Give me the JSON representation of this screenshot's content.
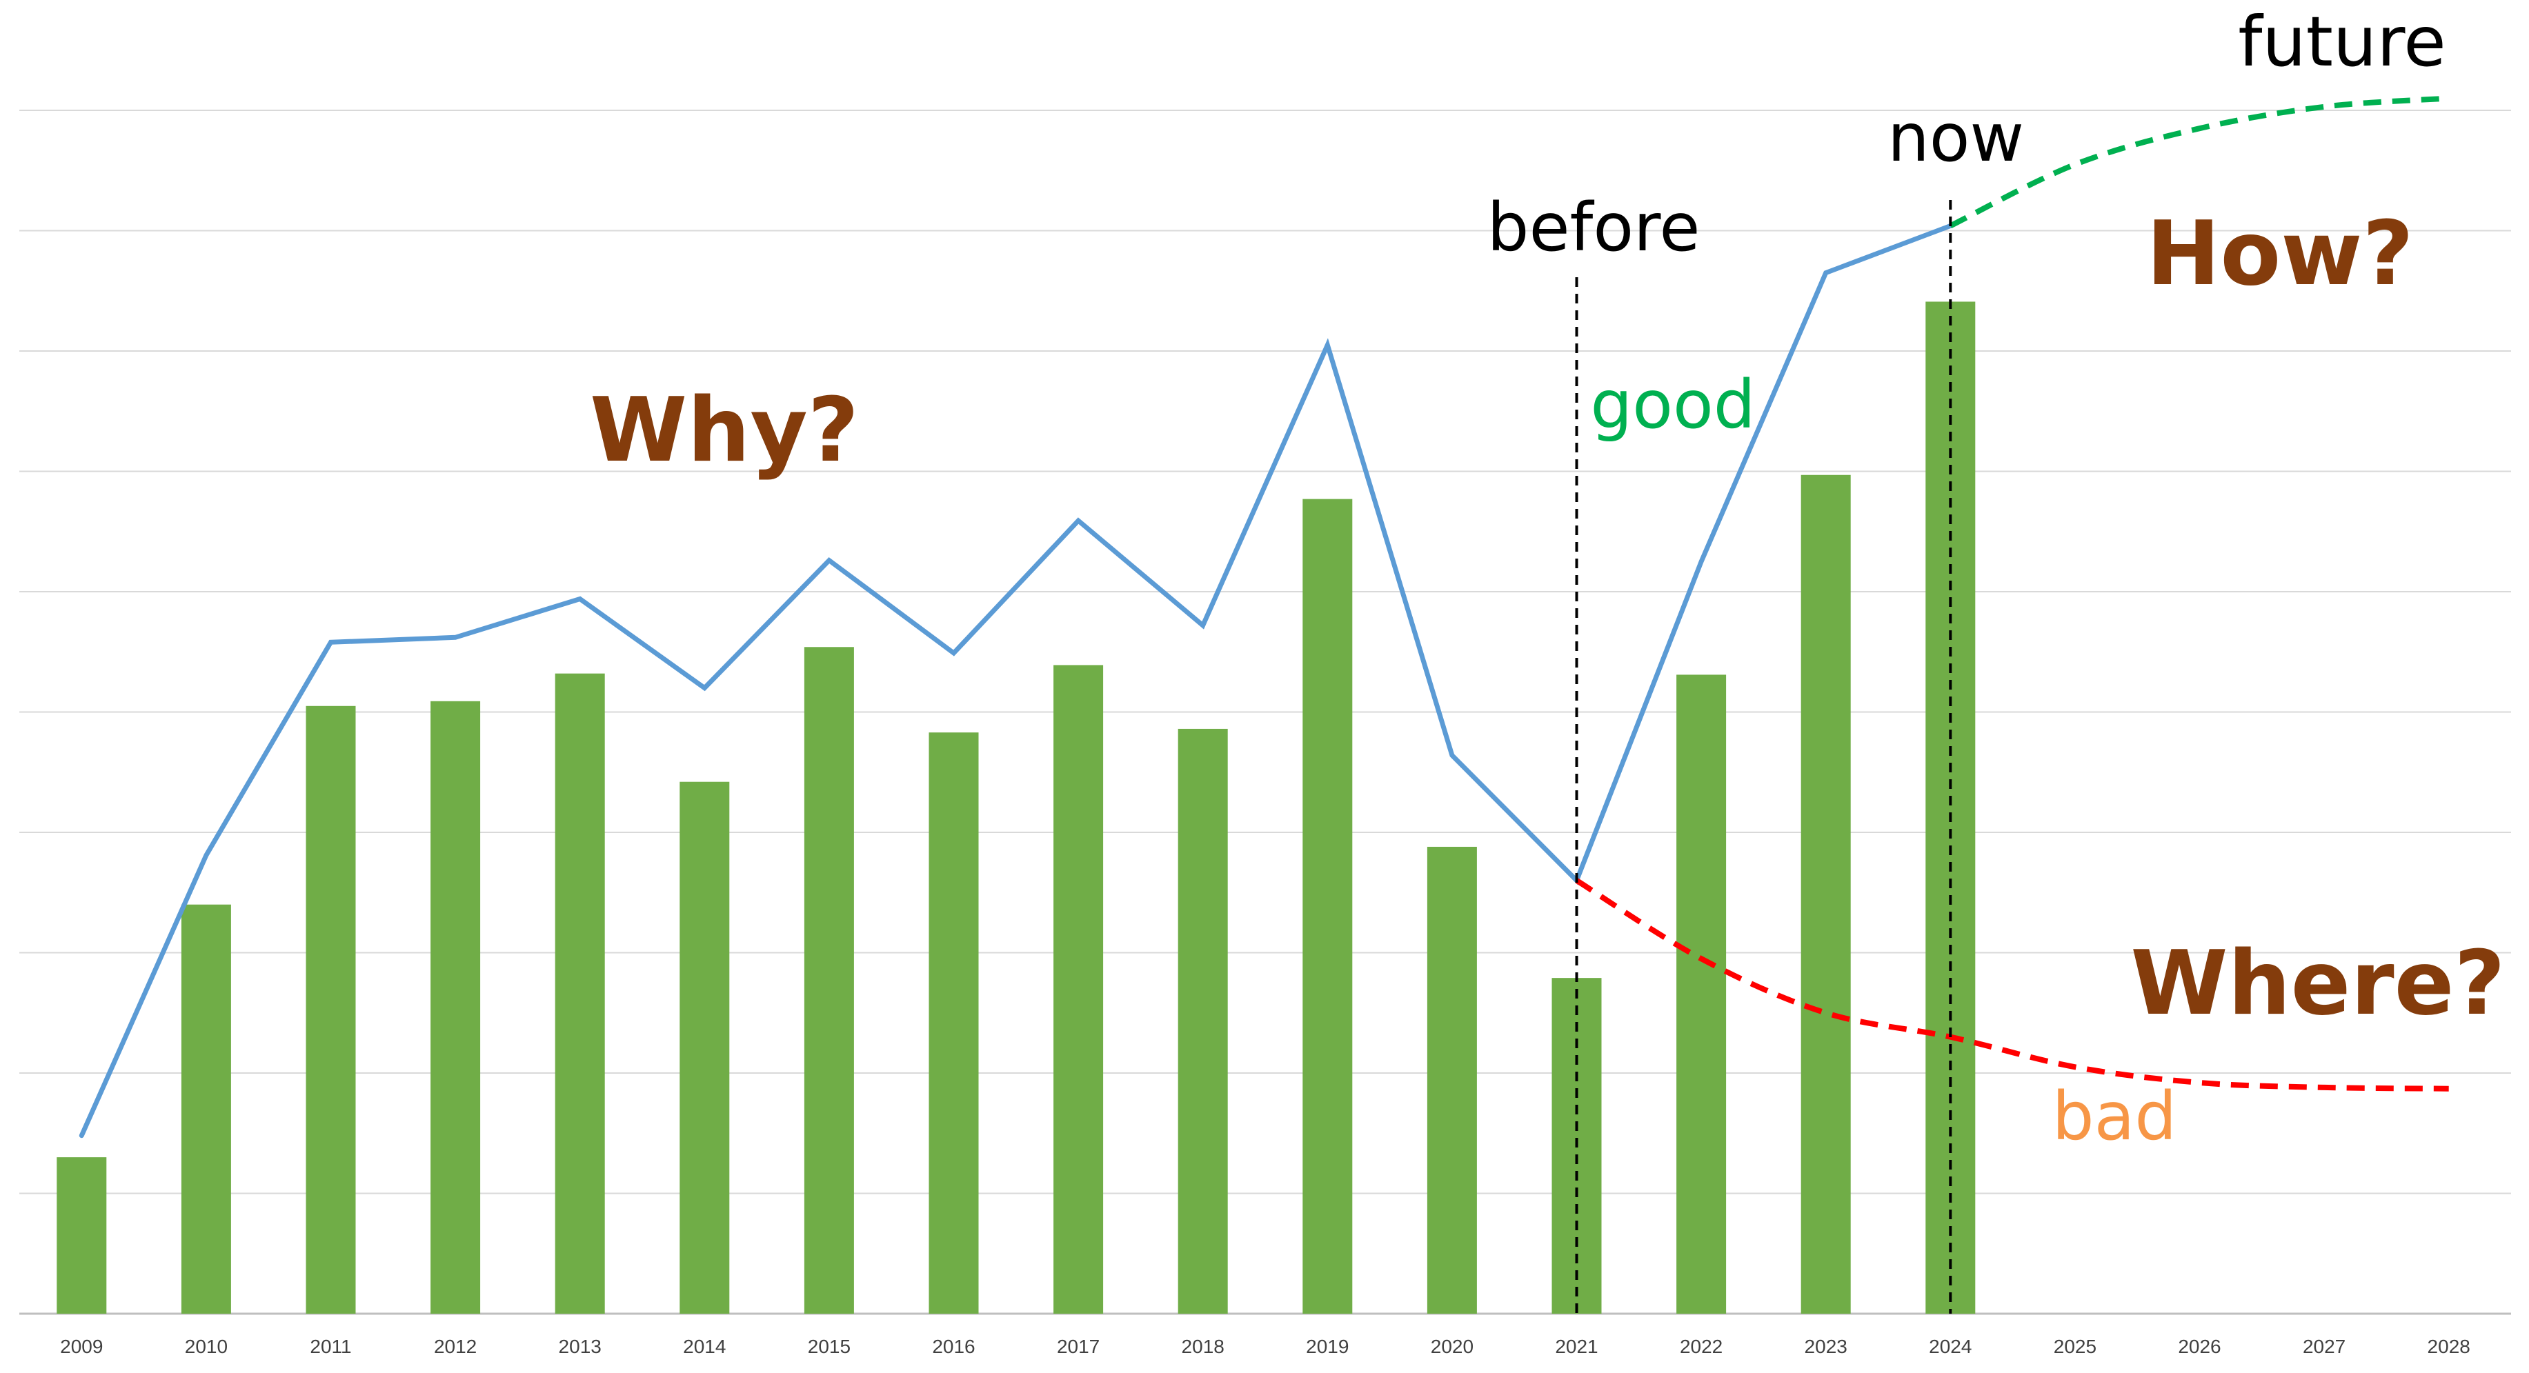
{
  "chart_data": {
    "type": "bar",
    "categories": [
      "2009",
      "2010",
      "2011",
      "2012",
      "2013",
      "2014",
      "2015",
      "2016",
      "2017",
      "2018",
      "2019",
      "2020",
      "2021",
      "2022",
      "2023",
      "2024",
      "2025",
      "2026",
      "2027",
      "2028"
    ],
    "series": [
      {
        "kind": "bar",
        "values": [
          1.3,
          3.4,
          5.05,
          5.09,
          5.32,
          4.42,
          5.54,
          4.83,
          5.39,
          4.86,
          6.77,
          3.88,
          2.79,
          5.31,
          6.97,
          8.41,
          null,
          null,
          null,
          null
        ],
        "color": "#70ad47"
      },
      {
        "kind": "line",
        "values": [
          1.48,
          3.81,
          5.58,
          5.62,
          5.94,
          5.2,
          6.26,
          5.49,
          6.59,
          5.72,
          8.05,
          4.64,
          3.6,
          6.25,
          8.65,
          9.04,
          null,
          null,
          null,
          null
        ],
        "color": "#5b9bd5"
      }
    ],
    "projections": {
      "good": {
        "style": "dashed",
        "color": "#00b050",
        "points": [
          [
            2024,
            9.04
          ],
          [
            2025,
            9.55
          ],
          [
            2026,
            9.85
          ],
          [
            2027,
            10.03
          ],
          [
            2028,
            10.1
          ]
        ]
      },
      "bad": {
        "style": "dashed",
        "color": "#ff0000",
        "points": [
          [
            2021,
            3.6
          ],
          [
            2022,
            2.95
          ],
          [
            2023,
            2.5
          ],
          [
            2024,
            2.3
          ],
          [
            2025,
            2.05
          ],
          [
            2026,
            1.92
          ],
          [
            2027,
            1.88
          ],
          [
            2028,
            1.87
          ]
        ]
      }
    },
    "reference_lines": [
      {
        "x": "2021",
        "style": "dashed",
        "color": "#000000"
      },
      {
        "x": "2024",
        "style": "dashed",
        "color": "#000000"
      }
    ],
    "annotations": [
      {
        "text": "future",
        "color": "#000000",
        "weight": "normal"
      },
      {
        "text": "now",
        "color": "#000000",
        "weight": "normal"
      },
      {
        "text": "before",
        "color": "#000000",
        "weight": "normal"
      },
      {
        "text": "good",
        "color": "#00b050",
        "weight": "normal"
      },
      {
        "text": "bad",
        "color": "#f79646",
        "weight": "normal"
      },
      {
        "text": "Why?",
        "color": "#843c0c",
        "weight": "bold"
      },
      {
        "text": "How?",
        "color": "#843c0c",
        "weight": "bold"
      },
      {
        "text": "Where?",
        "color": "#843c0c",
        "weight": "bold"
      }
    ],
    "ylim": [
      0,
      10
    ],
    "grid": true,
    "gridline_color": "#d9d9d9",
    "y_tick_labels_shown": false,
    "legend": "none"
  }
}
